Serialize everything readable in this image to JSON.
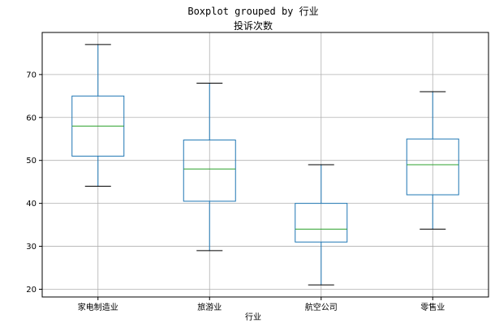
{
  "chart_data": {
    "type": "boxplot",
    "suptitle": "Boxplot grouped by 行业",
    "title": "投诉次数",
    "xlabel": "行业",
    "ylabel": "",
    "categories": [
      "家电制造业",
      "旅游业",
      "航空公司",
      "零售业"
    ],
    "boxes": [
      {
        "category": "家电制造业",
        "whisker_low": 44,
        "q1": 51,
        "median": 58,
        "q3": 65,
        "whisker_high": 77
      },
      {
        "category": "旅游业",
        "whisker_low": 29,
        "q1": 40.5,
        "median": 48,
        "q3": 54.75,
        "whisker_high": 68
      },
      {
        "category": "航空公司",
        "whisker_low": 21,
        "q1": 31,
        "median": 34,
        "q3": 40,
        "whisker_high": 49
      },
      {
        "category": "零售业",
        "whisker_low": 34,
        "q1": 42,
        "median": 49,
        "q3": 55,
        "whisker_high": 66
      }
    ],
    "yticks": [
      20,
      30,
      40,
      50,
      60,
      70
    ],
    "ylim": [
      18.2,
      79.8
    ],
    "grid": true,
    "colors": {
      "box": "#1f77b4",
      "whisker": "#1f77b4",
      "cap": "#000000",
      "median": "#2ca02c",
      "grid": "#b0b0b0"
    }
  }
}
